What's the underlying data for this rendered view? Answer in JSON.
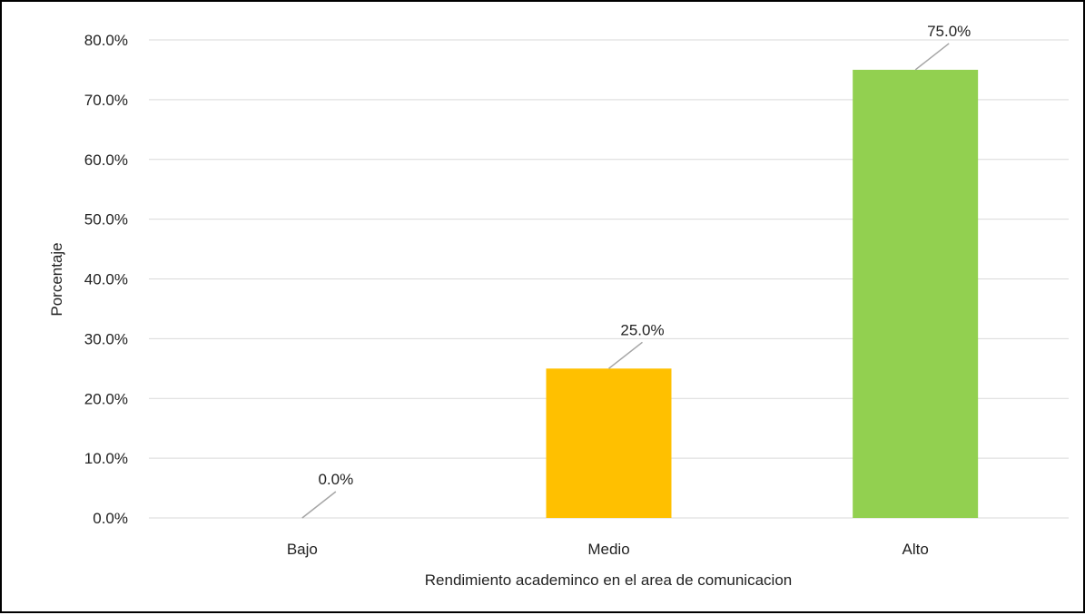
{
  "chart_data": {
    "type": "bar",
    "categories": [
      "Bajo",
      "Medio",
      "Alto"
    ],
    "values": [
      0.0,
      25.0,
      75.0
    ],
    "data_labels": [
      "0.0%",
      "25.0%",
      "75.0%"
    ],
    "colors": [
      "#4472C4",
      "#FFC000",
      "#92D050"
    ],
    "title": "",
    "xlabel": "Rendimiento academinco en el area de comunicacion",
    "ylabel": "Porcentaje",
    "ylim": [
      0,
      80
    ],
    "yticks": [
      0,
      10,
      20,
      30,
      40,
      50,
      60,
      70,
      80
    ],
    "ytick_labels": [
      "0.0%",
      "10.0%",
      "20.0%",
      "30.0%",
      "40.0%",
      "50.0%",
      "60.0%",
      "70.0%",
      "80.0%"
    ],
    "grid": true,
    "legend": "none"
  }
}
